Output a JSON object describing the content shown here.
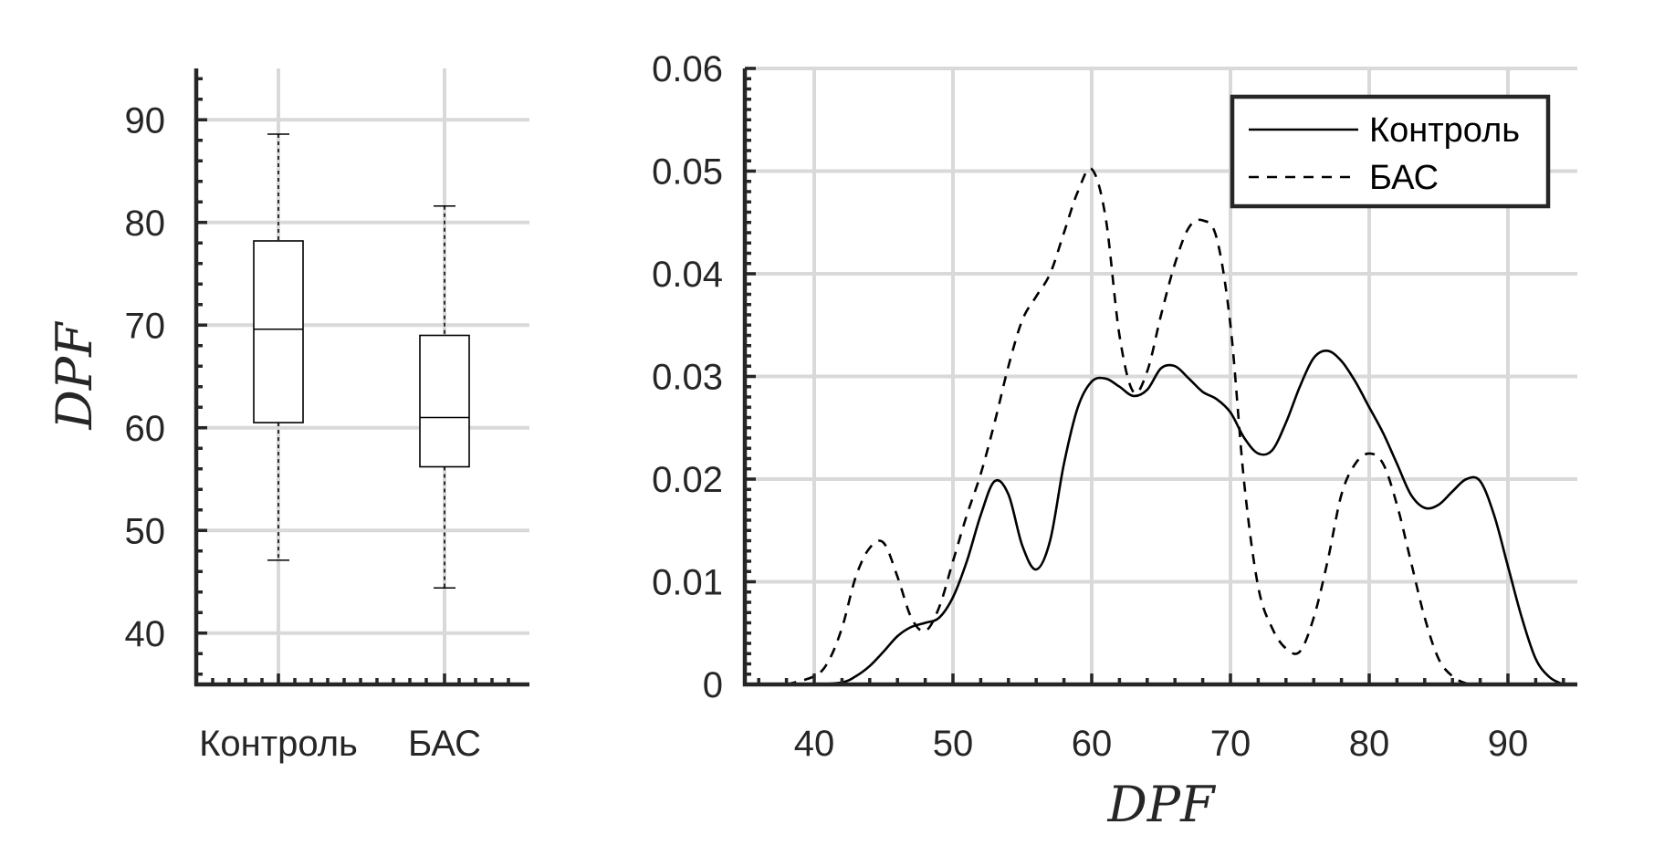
{
  "chart_data": [
    {
      "type": "box",
      "ylabel": "DPF",
      "ylim": [
        35,
        95
      ],
      "yticks": [
        40,
        50,
        60,
        70,
        80,
        90
      ],
      "grid": true,
      "categories": [
        "Контроль",
        "БАС"
      ],
      "boxes": [
        {
          "category": "Контроль",
          "min": 47.1,
          "q1": 60.5,
          "median": 69.6,
          "q3": 78.2,
          "max": 88.6
        },
        {
          "category": "БАС",
          "min": 44.4,
          "q1": 56.2,
          "median": 61.0,
          "q3": 69.0,
          "max": 81.6
        }
      ]
    },
    {
      "type": "line",
      "xlabel": "DPF",
      "ylabel": "",
      "xlim": [
        35,
        95
      ],
      "ylim": [
        0,
        0.06
      ],
      "xticks": [
        40,
        50,
        60,
        70,
        80,
        90
      ],
      "yticks": [
        0,
        0.01,
        0.02,
        0.03,
        0.04,
        0.05,
        0.06
      ],
      "ytick_labels": [
        "0",
        "0.01",
        "0.02",
        "0.03",
        "0.04",
        "0.05",
        "0.06"
      ],
      "grid": true,
      "legend_position": "top-right",
      "series": [
        {
          "name": "Контроль",
          "style": "solid",
          "x": [
            36,
            38,
            40,
            42,
            43,
            44,
            45,
            46,
            47,
            48,
            49,
            50,
            51,
            52,
            53,
            54,
            55,
            56,
            57,
            58,
            59,
            60,
            61,
            62,
            63,
            64,
            65,
            66,
            67,
            68,
            69,
            70,
            71,
            72,
            73,
            74,
            75,
            76,
            77,
            78,
            79,
            80,
            81,
            82,
            83,
            84,
            85,
            86,
            87,
            88,
            89,
            90,
            91,
            92,
            93,
            94
          ],
          "y": [
            0,
            0,
            0,
            0.0002,
            0.0008,
            0.0018,
            0.0032,
            0.0047,
            0.0056,
            0.006,
            0.0065,
            0.0085,
            0.012,
            0.0165,
            0.0198,
            0.0185,
            0.0135,
            0.0112,
            0.014,
            0.0215,
            0.027,
            0.0295,
            0.0298,
            0.029,
            0.0281,
            0.0287,
            0.0308,
            0.031,
            0.0298,
            0.0285,
            0.0278,
            0.0265,
            0.024,
            0.0225,
            0.0228,
            0.0255,
            0.029,
            0.0318,
            0.0325,
            0.0315,
            0.0295,
            0.027,
            0.0245,
            0.0215,
            0.0185,
            0.0172,
            0.0175,
            0.0188,
            0.02,
            0.0198,
            0.0165,
            0.0115,
            0.0065,
            0.0025,
            0.0007,
            0
          ]
        },
        {
          "name": "БАС",
          "style": "dashed",
          "x": [
            38,
            40,
            41,
            42,
            43,
            44,
            45,
            46,
            47,
            48,
            49,
            50,
            51,
            52,
            53,
            54,
            55,
            56,
            57,
            58,
            59,
            60,
            61,
            62,
            63,
            64,
            65,
            66,
            67,
            68,
            69,
            70,
            71,
            72,
            73,
            74,
            75,
            76,
            77,
            78,
            79,
            80,
            81,
            82,
            83,
            84,
            85,
            86,
            87,
            88
          ],
          "y": [
            0,
            0.0008,
            0.0022,
            0.0055,
            0.0105,
            0.0133,
            0.0138,
            0.0105,
            0.0065,
            0.0052,
            0.0075,
            0.012,
            0.0165,
            0.0205,
            0.0255,
            0.031,
            0.0355,
            0.0378,
            0.04,
            0.044,
            0.048,
            0.0502,
            0.0455,
            0.034,
            0.0285,
            0.0305,
            0.036,
            0.041,
            0.0445,
            0.0452,
            0.0435,
            0.035,
            0.0195,
            0.0095,
            0.0055,
            0.0035,
            0.0032,
            0.0065,
            0.012,
            0.0185,
            0.0215,
            0.0225,
            0.0215,
            0.0175,
            0.012,
            0.0065,
            0.0025,
            0.0008,
            0.0001,
            0
          ]
        }
      ]
    }
  ]
}
